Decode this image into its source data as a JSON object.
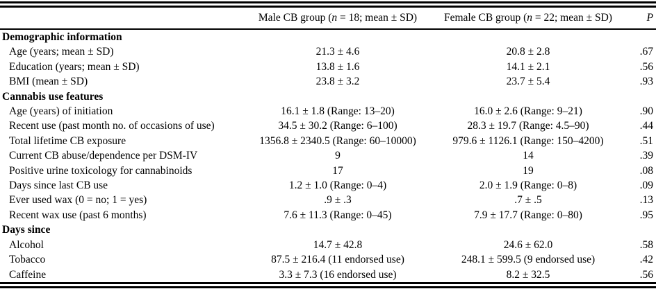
{
  "colors": {
    "text": "#000000",
    "background": "#ffffff",
    "rule": "#000000"
  },
  "table": {
    "header": {
      "label": "",
      "male": {
        "pre": "Male CB group (",
        "italic": "n",
        "post": " = 18; mean ± SD)"
      },
      "female": {
        "pre": "Female CB group (",
        "italic": "n",
        "post": " = 22; mean ± SD)"
      },
      "p": "P"
    },
    "rows": [
      {
        "type": "section",
        "label": "Demographic information"
      },
      {
        "type": "item",
        "label": "Age (years; mean ± SD)",
        "male": "21.3 ± 4.6",
        "female": "20.8 ± 2.8",
        "p": ".67"
      },
      {
        "type": "item",
        "label": "Education (years; mean ± SD)",
        "male": "13.8 ± 1.6",
        "female": "14.1 ± 2.1",
        "p": ".56"
      },
      {
        "type": "item",
        "label": "BMI (mean ± SD)",
        "male": "23.8 ± 3.2",
        "female": "23.7 ± 5.4",
        "p": ".93"
      },
      {
        "type": "section",
        "label": "Cannabis use features"
      },
      {
        "type": "item",
        "label": "Age (years) of initiation",
        "male": "16.1 ± 1.8 (Range: 13–20)",
        "female": "16.0 ± 2.6 (Range: 9–21)",
        "p": ".90"
      },
      {
        "type": "item",
        "label": "Recent use (past month no. of occasions of use)",
        "male": "34.5 ± 30.2 (Range: 6–100)",
        "female": "28.3 ± 19.7 (Range: 4.5–90)",
        "p": ".44"
      },
      {
        "type": "item",
        "label": "Total lifetime CB exposure",
        "male": "1356.8 ± 2340.5 (Range: 60–10000)",
        "female": "979.6 ± 1126.1 (Range: 150–4200)",
        "p": ".51"
      },
      {
        "type": "item",
        "label": "Current CB abuse/dependence per DSM-IV",
        "male": "9",
        "female": "14",
        "p": ".39"
      },
      {
        "type": "item",
        "label": "Positive urine toxicology for cannabinoids",
        "male": "17",
        "female": "19",
        "p": ".08"
      },
      {
        "type": "item",
        "label": "Days since last CB use",
        "male": "1.2 ± 1.0 (Range: 0–4)",
        "female": "2.0 ± 1.9 (Range: 0–8)",
        "p": ".09"
      },
      {
        "type": "item",
        "label": "Ever used wax (0 = no; 1 = yes)",
        "male": ".9 ± .3",
        "female": ".7 ± .5",
        "p": ".13"
      },
      {
        "type": "item",
        "label": "Recent wax use (past 6 months)",
        "male": "7.6 ± 11.3 (Range: 0–45)",
        "female": "7.9 ± 17.7 (Range: 0–80)",
        "p": ".95"
      },
      {
        "type": "section",
        "label": "Days since"
      },
      {
        "type": "item",
        "label": "Alcohol",
        "male": "14.7 ± 42.8",
        "female": "24.6 ± 62.0",
        "p": ".58"
      },
      {
        "type": "item",
        "label": "Tobacco",
        "male": "87.5 ± 216.4 (11 endorsed use)",
        "female": "248.1 ± 599.5 (9 endorsed use)",
        "p": ".42"
      },
      {
        "type": "item",
        "label": "Caffeine",
        "male": "3.3 ± 7.3 (16 endorsed use)",
        "female": "8.2 ± 32.5",
        "p": ".56"
      }
    ]
  }
}
